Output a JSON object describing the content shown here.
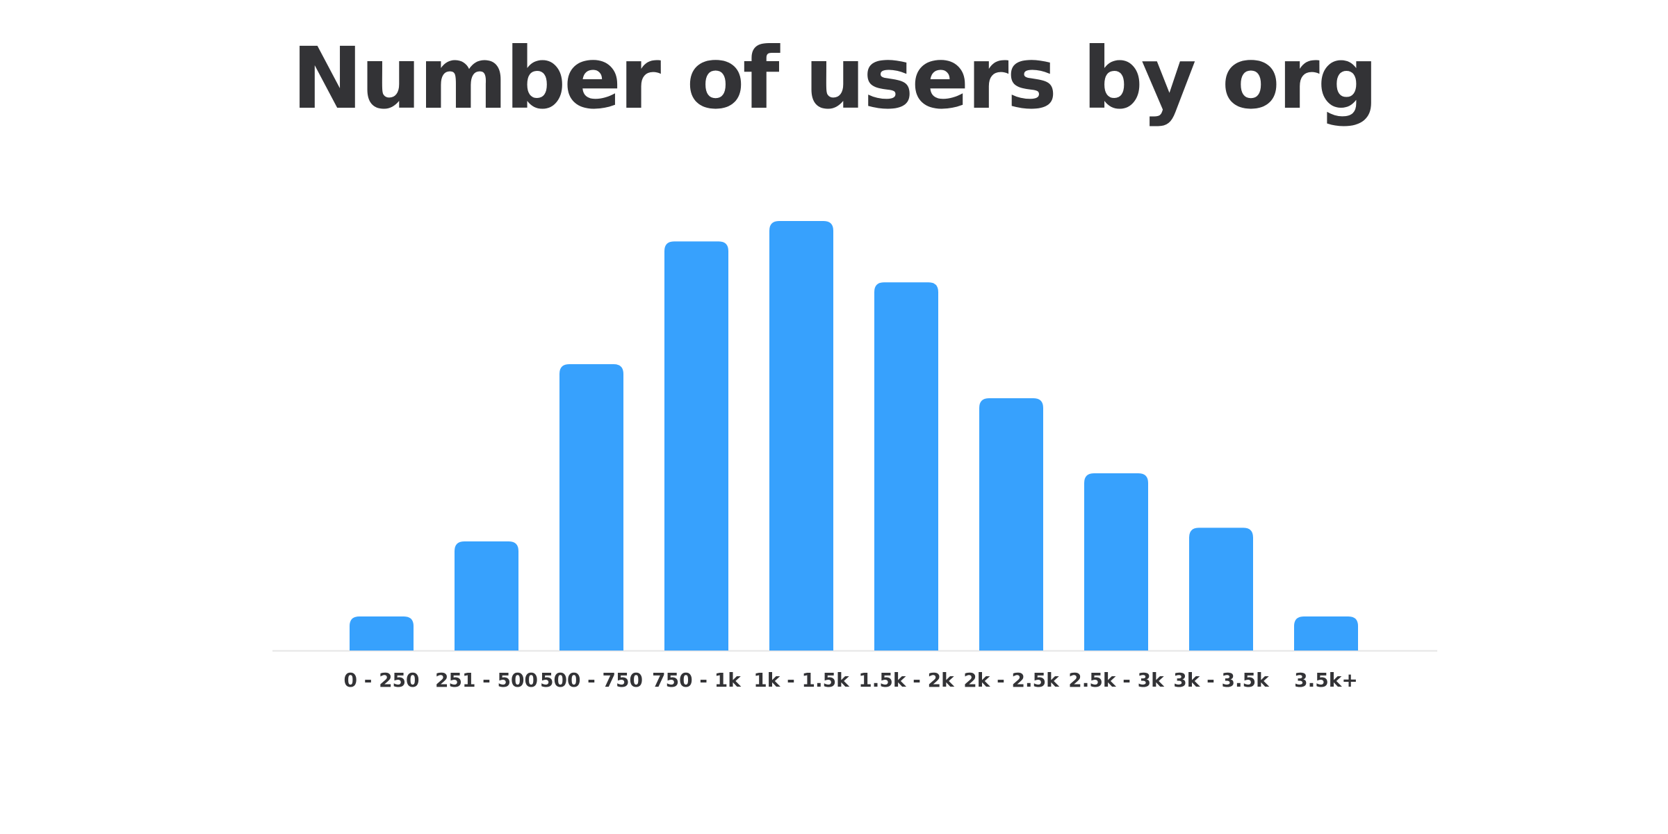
{
  "chart_data": {
    "type": "bar",
    "title": "Number of users by org",
    "xlabel": "",
    "ylabel": "",
    "categories": [
      "0 - 250",
      "251 - 500",
      "500 - 750",
      "750 - 1k",
      "1k - 1.5k",
      "1.5k - 2k",
      "2k - 2.5k",
      "2.5k - 3k",
      "3k - 3.5k",
      "3.5k+"
    ],
    "values": [
      5,
      16,
      42,
      60,
      63,
      54,
      37,
      26,
      18,
      5
    ],
    "ylim": [
      0,
      63
    ],
    "grid": false,
    "legend": "none",
    "colors": {
      "bar": "#37A1FD",
      "text": "#333336",
      "baseline": "#E6E6E6"
    }
  }
}
